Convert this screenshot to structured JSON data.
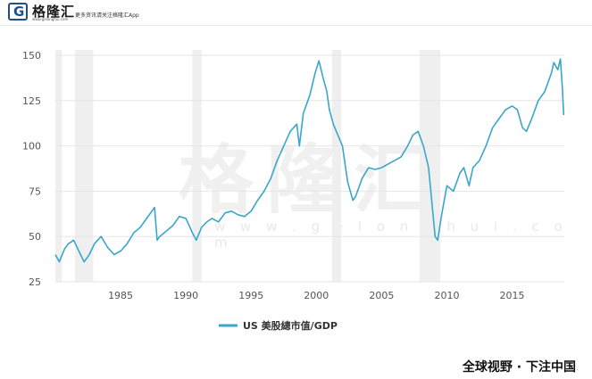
{
  "header": {
    "logo_letter": "G",
    "brand": "格隆汇",
    "brand_url": "www.gelonghui.com",
    "tagline": "更多资讯请关注格隆汇App"
  },
  "watermark": {
    "text": "格隆汇",
    "url": "w w w . g e l o n g h u i . c o m"
  },
  "footer": {
    "text": "全球视野 · 下注中国"
  },
  "colors": {
    "line": "#3aa6c9",
    "recession": "#efefef",
    "grid": "#e6e6e6",
    "axis_text": "#555555"
  },
  "chart_data": {
    "type": "line",
    "title": "",
    "xlabel": "",
    "ylabel": "",
    "xlim": [
      1980.0,
      2019.0
    ],
    "ylim": [
      25,
      150
    ],
    "yticks": [
      25,
      50,
      75,
      100,
      125,
      150
    ],
    "xticks": [
      1985,
      1990,
      1995,
      2000,
      2005,
      2010,
      2015
    ],
    "legend": {
      "position": "bottom-center"
    },
    "recession_bands": [
      [
        1980.0,
        1980.5
      ],
      [
        1981.5,
        1982.9
      ],
      [
        1990.5,
        1991.2
      ],
      [
        2001.2,
        2001.9
      ],
      [
        2007.9,
        2009.5
      ]
    ],
    "series": [
      {
        "name": "US 美股總市值/GDP",
        "x": [
          1980.0,
          1980.3,
          1980.7,
          1981.0,
          1981.4,
          1981.8,
          1982.2,
          1982.6,
          1983.0,
          1983.5,
          1984.0,
          1984.5,
          1985.0,
          1985.5,
          1986.0,
          1986.5,
          1987.0,
          1987.6,
          1987.8,
          1988.0,
          1988.5,
          1989.0,
          1989.5,
          1990.0,
          1990.5,
          1990.8,
          1991.2,
          1991.6,
          1992.0,
          1992.5,
          1993.0,
          1993.5,
          1994.0,
          1994.5,
          1995.0,
          1995.5,
          1996.0,
          1996.5,
          1997.0,
          1997.5,
          1998.0,
          1998.5,
          1998.7,
          1999.0,
          1999.5,
          1999.9,
          2000.2,
          2000.5,
          2000.8,
          2001.0,
          2001.3,
          2001.7,
          2002.0,
          2002.4,
          2002.8,
          2003.0,
          2003.5,
          2004.0,
          2004.5,
          2005.0,
          2005.5,
          2006.0,
          2006.5,
          2007.0,
          2007.4,
          2007.8,
          2008.2,
          2008.6,
          2008.9,
          2009.1,
          2009.3,
          2009.6,
          2010.0,
          2010.5,
          2011.0,
          2011.3,
          2011.7,
          2012.0,
          2012.5,
          2013.0,
          2013.5,
          2014.0,
          2014.5,
          2015.0,
          2015.4,
          2015.8,
          2016.1,
          2016.5,
          2017.0,
          2017.5,
          2018.0,
          2018.2,
          2018.5,
          2018.7,
          2018.85,
          2018.95
        ],
        "values": [
          40,
          36,
          43,
          46,
          48,
          42,
          36,
          40,
          46,
          50,
          44,
          40,
          42,
          46,
          52,
          55,
          60,
          66,
          48,
          50,
          53,
          56,
          61,
          60,
          52,
          48,
          55,
          58,
          60,
          58,
          63,
          64,
          62,
          61,
          64,
          70,
          75,
          82,
          92,
          100,
          108,
          112,
          100,
          118,
          128,
          140,
          147,
          138,
          130,
          120,
          112,
          105,
          100,
          80,
          70,
          72,
          82,
          88,
          87,
          88,
          90,
          92,
          94,
          100,
          106,
          108,
          100,
          88,
          65,
          50,
          48,
          62,
          78,
          75,
          85,
          88,
          78,
          88,
          92,
          100,
          110,
          115,
          120,
          122,
          120,
          110,
          108,
          115,
          125,
          130,
          140,
          146,
          142,
          148,
          132,
          117
        ]
      }
    ]
  }
}
